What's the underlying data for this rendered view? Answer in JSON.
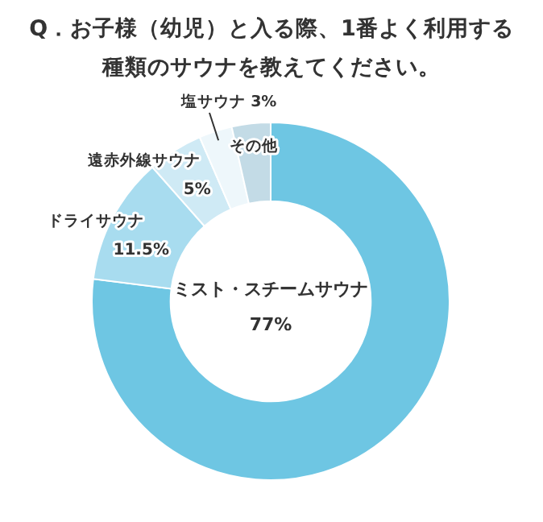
{
  "chart_data": {
    "type": "donut",
    "title": "Q．お子様（幼児）と入る際、1番よく利用する種類のサウナを教えてください。",
    "categories": [
      "ミスト・スチームサウナ",
      "ドライサウナ",
      "遠赤外線サウナ",
      "塩サウナ",
      "その他"
    ],
    "values": [
      77,
      11.5,
      5,
      3,
      3.5
    ],
    "value_labels": [
      "77%",
      "11.5%",
      "5%",
      "3%",
      null
    ],
    "colors": [
      "#6ec6e3",
      "#a8dcef",
      "#cfeaf5",
      "#eef7fb",
      "#c3dbe6"
    ],
    "legend": false
  }
}
